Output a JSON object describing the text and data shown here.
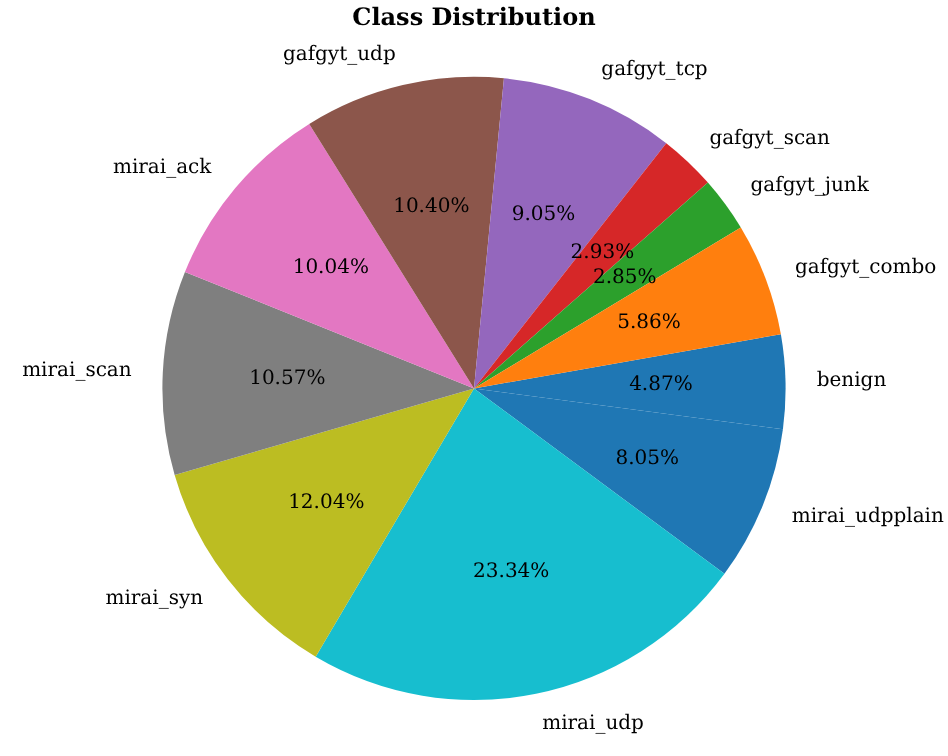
{
  "chart_data": {
    "type": "pie",
    "title": "Class Distribution",
    "categories": [
      "benign",
      "mirai_udpplain",
      "mirai_udp",
      "mirai_syn",
      "mirai_scan",
      "mirai_ack",
      "gafgyt_udp",
      "gafgyt_tcp",
      "gafgyt_scan",
      "gafgyt_junk",
      "gafgyt_combo"
    ],
    "values": [
      4.87,
      8.05,
      23.34,
      12.04,
      10.57,
      10.04,
      10.4,
      9.05,
      2.93,
      2.85,
      5.86
    ],
    "value_labels": [
      "4.87%",
      "8.05%",
      "23.34%",
      "12.04%",
      "10.57%",
      "10.04%",
      "10.40%",
      "9.05%",
      "2.93%",
      "2.85%",
      "5.86%"
    ],
    "colors": [
      "#1f77b4",
      "#1f77b4",
      "#17becf",
      "#bcbd22",
      "#7f7f7f",
      "#e377c2",
      "#8c564b",
      "#9467bd",
      "#d62728",
      "#2ca02c",
      "#ff7f0e"
    ],
    "legend": false
  }
}
